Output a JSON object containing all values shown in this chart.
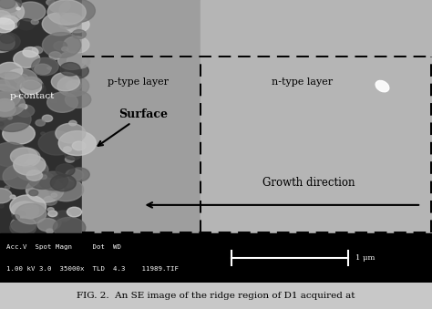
{
  "fig_width": 4.74,
  "fig_height": 3.39,
  "dpi": 100,
  "status_bar_text1": "Acc.V  Spot Magn     Dot  WD",
  "status_bar_text2": "1.00 kV 3.0  35000x  TLD  4.3    11989.TIF",
  "scale_bar_label": "1 μm",
  "label_p_type": "p-type layer",
  "label_n_type": "n-type layer",
  "label_p_contact": "p-contact",
  "label_surface": "Surface",
  "label_growth": "Growth direction",
  "caption": "FIG. 2.  An SE image of the ridge region of D1 acquired at"
}
